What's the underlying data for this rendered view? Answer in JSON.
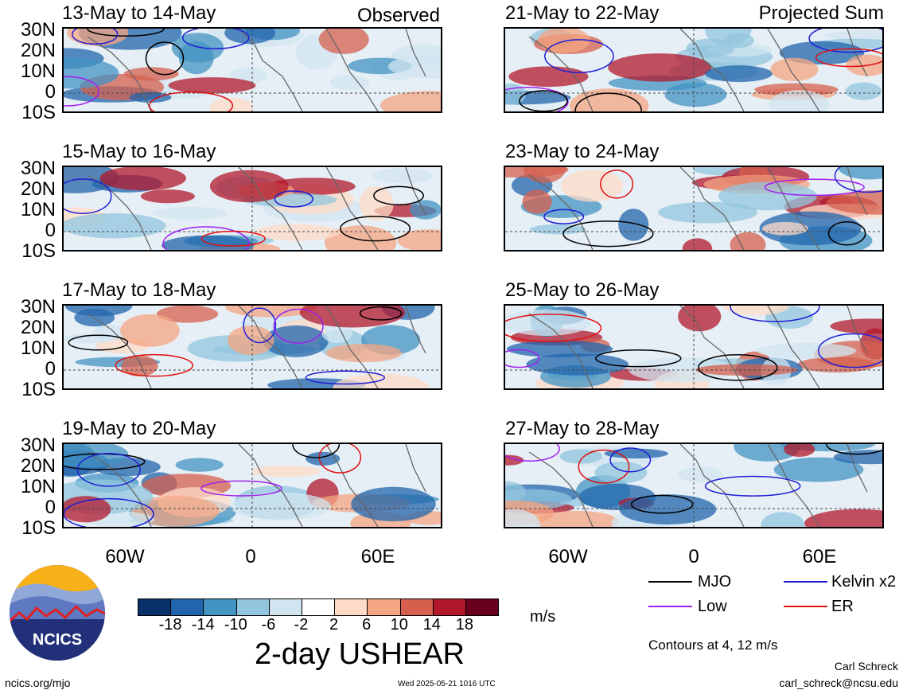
{
  "panels_left": [
    {
      "title": "13-May to 14-May",
      "tag": "Observed"
    },
    {
      "title": "15-May to 16-May",
      "tag": ""
    },
    {
      "title": "17-May to 18-May",
      "tag": ""
    },
    {
      "title": "19-May to 20-May",
      "tag": ""
    }
  ],
  "panels_right": [
    {
      "title": "21-May to 22-May",
      "tag": "Projected Sum"
    },
    {
      "title": "23-May to 24-May",
      "tag": ""
    },
    {
      "title": "25-May to 26-May",
      "tag": ""
    },
    {
      "title": "27-May to 28-May",
      "tag": ""
    }
  ],
  "lat_labels": [
    "30N",
    "20N",
    "10N",
    "0",
    "10S"
  ],
  "lon_labels": [
    "60W",
    "0",
    "60E"
  ],
  "legend": {
    "mjo": "MJO",
    "kelvin": "Kelvin x2",
    "low": "Low",
    "er": "ER",
    "contours_note": "Contours at 4, 12 m/s"
  },
  "colorbar": {
    "ticks": [
      "-18",
      "-14",
      "-10",
      "-6",
      "-2",
      "2",
      "6",
      "10",
      "14",
      "18"
    ],
    "units": "m/s",
    "colors": [
      "#08306b",
      "#2166ac",
      "#4393c3",
      "#92c5de",
      "#d1e5f0",
      "#ffffff",
      "#fddbc7",
      "#f4a582",
      "#d6604d",
      "#b2182b",
      "#67001f"
    ]
  },
  "title": "2-day USHEAR",
  "logo_text": "NCICS",
  "footer": {
    "url": "ncics.org/mjo",
    "timestamp": "Wed 2025-05-21 1016 UTC",
    "author": "Carl Schreck",
    "email": "carl_schreck@ncsu.edu"
  },
  "series_colors": {
    "mjo": "#000000",
    "kelvin": "#1f1fd6",
    "low": "#a020f0",
    "er": "#e01010"
  }
}
